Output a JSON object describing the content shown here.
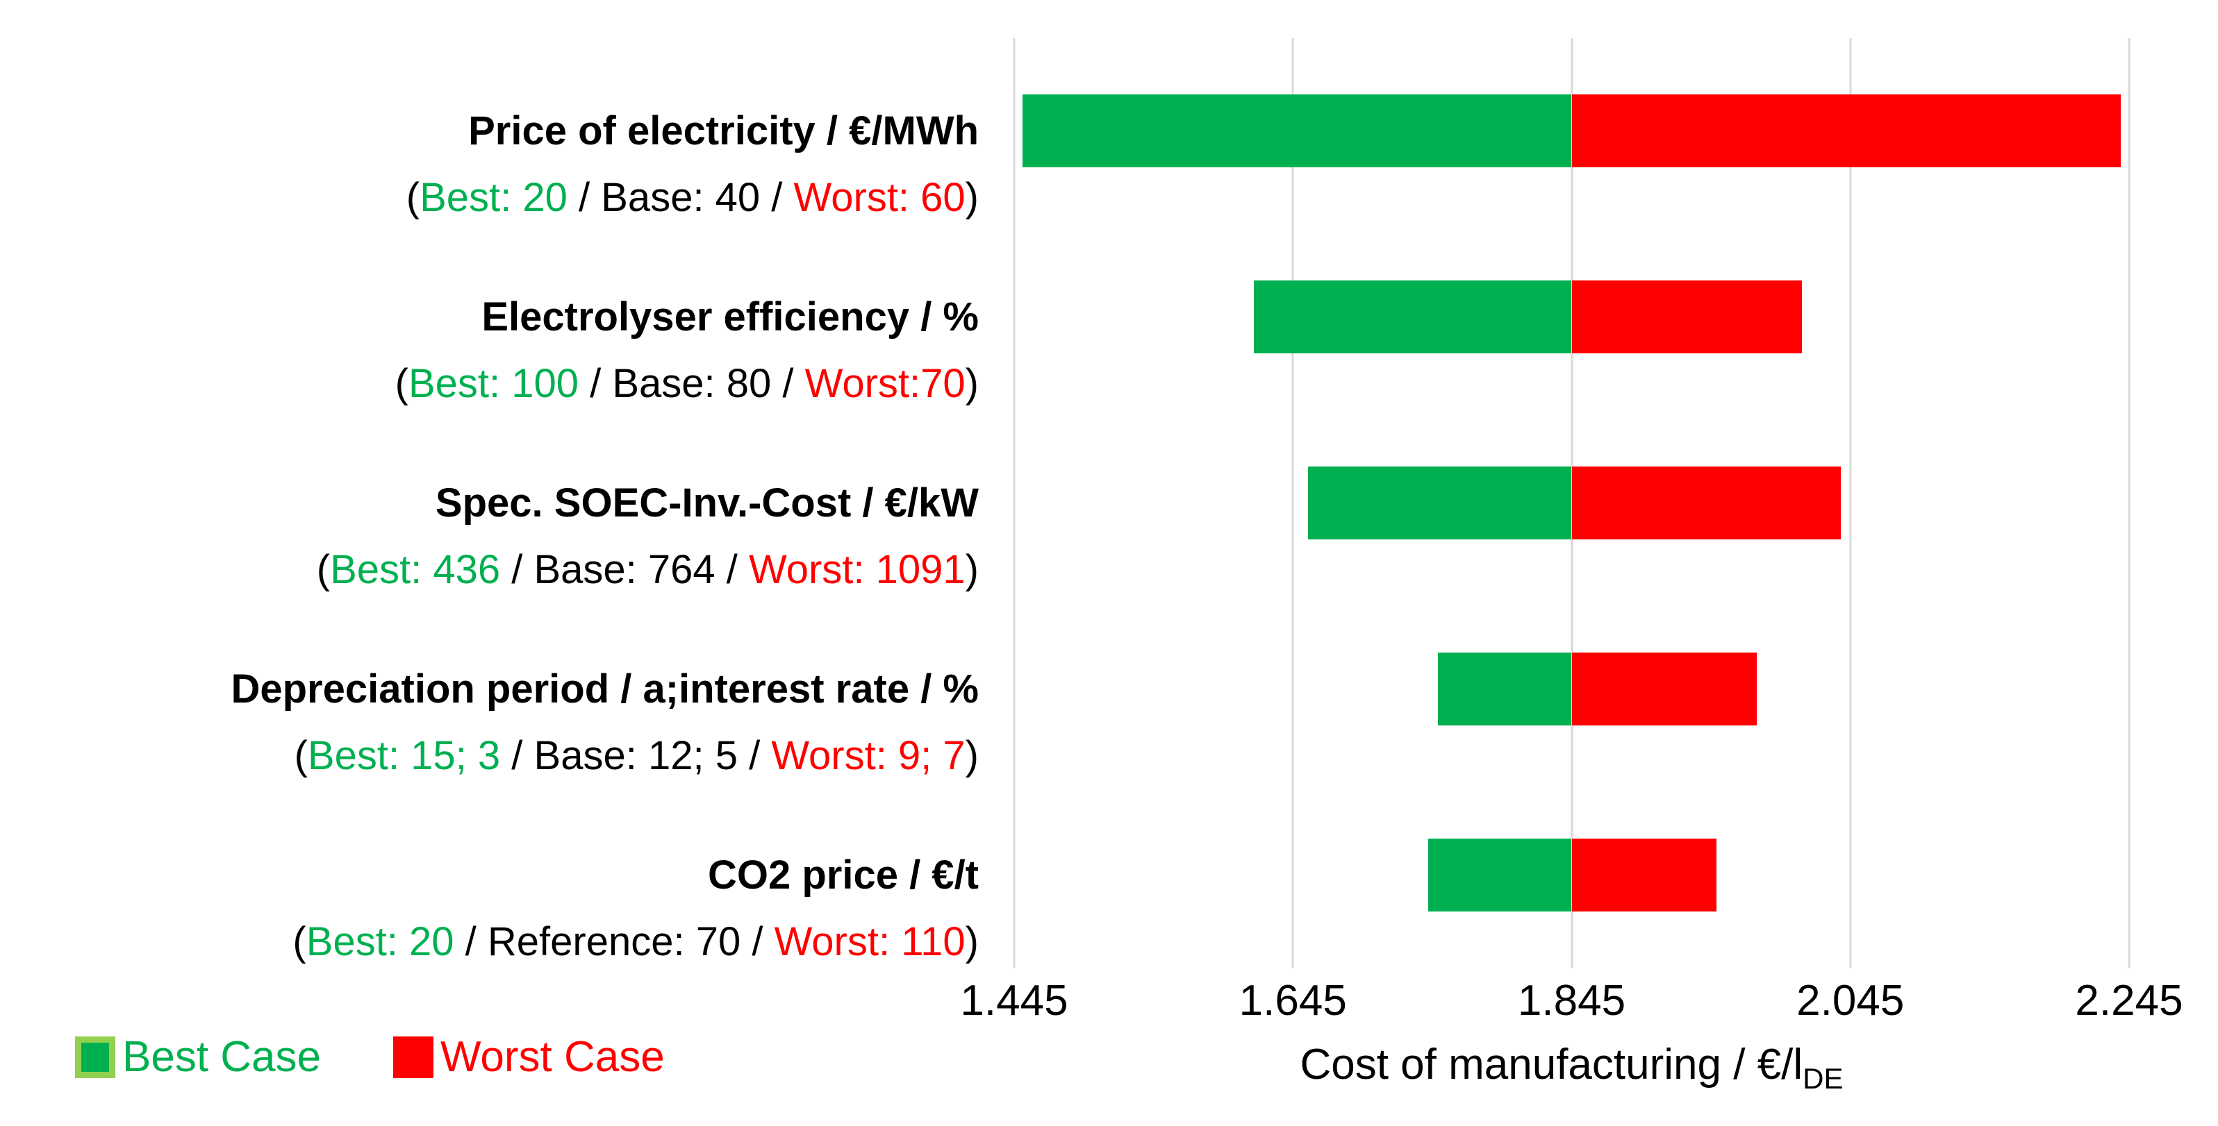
{
  "chart_data": {
    "type": "bar",
    "subtype": "tornado-sensitivity",
    "orientation": "horizontal",
    "title": "",
    "xlabel": "Cost of manufacturing / €/l",
    "xlabel_subscript": "DE",
    "xlim": [
      1.445,
      2.245
    ],
    "base_cost": 1.845,
    "x_ticks": [
      "1.445",
      "1.645",
      "1.845",
      "2.045",
      "2.245"
    ],
    "grid": "vertical-gridlines-on",
    "legend_position": "bottom-left",
    "colors": {
      "best": "#00B050",
      "best_border": "#92D050",
      "worst": "#FF0000",
      "gridline": "#D9D9D9",
      "text_black": "#000000",
      "text_green": "#00B050",
      "text_red": "#FF0000"
    },
    "rows": [
      {
        "title": "Price of electricity / €/MWh",
        "best_param": "20",
        "base_param": "40",
        "worst_param": "60",
        "best_cost": 1.451,
        "worst_cost": 2.239,
        "detail_segments": [
          {
            "t": "(",
            "c": "#000000"
          },
          {
            "t": "Best: 20",
            "c": "#00B050"
          },
          {
            "t": " / Base: 40 / ",
            "c": "#000000"
          },
          {
            "t": "Worst: 60",
            "c": "#FF0000"
          },
          {
            "t": ")",
            "c": "#000000"
          }
        ]
      },
      {
        "title": "Electrolyser efficiency / %",
        "best_param": "100",
        "base_param": "80",
        "worst_param": "70",
        "best_cost": 1.617,
        "worst_cost": 2.01,
        "detail_segments": [
          {
            "t": "(",
            "c": "#000000"
          },
          {
            "t": "Best: 100",
            "c": "#00B050"
          },
          {
            "t": " / Base: 80 / ",
            "c": "#000000"
          },
          {
            "t": "Worst:70",
            "c": "#FF0000"
          },
          {
            "t": ")",
            "c": "#000000"
          }
        ]
      },
      {
        "title": "Spec. SOEC-Inv.-Cost / €/kW",
        "best_param": "436",
        "base_param": "764",
        "worst_param": "1091",
        "best_cost": 1.656,
        "worst_cost": 2.038,
        "detail_segments": [
          {
            "t": "(",
            "c": "#000000"
          },
          {
            "t": "Best: 436",
            "c": "#00B050"
          },
          {
            "t": " / Base: 764 / ",
            "c": "#000000"
          },
          {
            "t": "Worst: 1091",
            "c": "#FF0000"
          },
          {
            "t": ")",
            "c": "#000000"
          }
        ]
      },
      {
        "title": "Depreciation period / a;interest rate / %",
        "best_param": "15; 3",
        "base_param": "12; 5",
        "worst_param": "9; 7",
        "best_cost": 1.749,
        "worst_cost": 1.978,
        "detail_segments": [
          {
            "t": "(",
            "c": "#000000"
          },
          {
            "t": "Best: 15; 3",
            "c": "#00B050"
          },
          {
            "t": " / Base: 12; 5 / ",
            "c": "#000000"
          },
          {
            "t": "Worst: 9; 7",
            "c": "#FF0000"
          },
          {
            "t": ")",
            "c": "#000000"
          }
        ]
      },
      {
        "title": "CO2 price / €/t",
        "best_param": "20",
        "base_param": "70",
        "worst_param": "110",
        "best_cost": 1.742,
        "worst_cost": 1.949,
        "detail_segments": [
          {
            "t": "(",
            "c": "#000000"
          },
          {
            "t": "Best: 20",
            "c": "#00B050"
          },
          {
            "t": " / Reference: 70 / ",
            "c": "#000000"
          },
          {
            "t": "Worst: 110",
            "c": "#FF0000"
          },
          {
            "t": ")",
            "c": "#000000"
          }
        ]
      }
    ],
    "legend": [
      {
        "label": "Best Case",
        "fill": "#00B050",
        "border": "#92D050",
        "text_color": "#00B050"
      },
      {
        "label": "Worst Case",
        "fill": "#FF0000",
        "border": "#FF0000",
        "text_color": "#FF0000"
      }
    ]
  }
}
